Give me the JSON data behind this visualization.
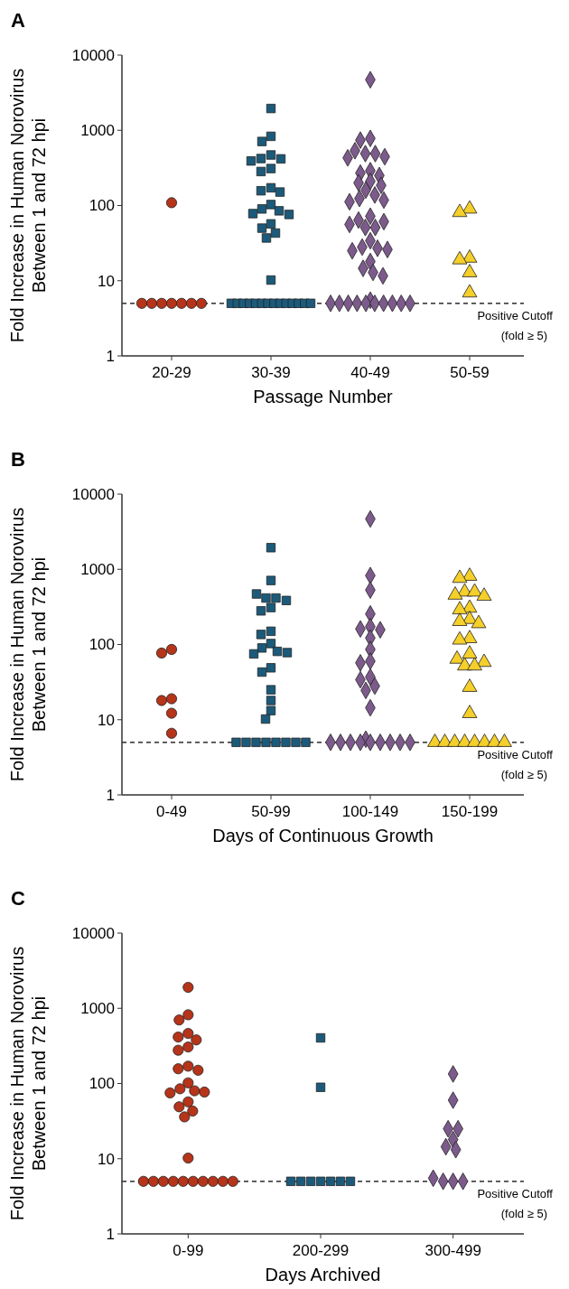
{
  "chart_data": [
    {
      "type": "scatter",
      "title": "A",
      "xlabel": "Passage Number",
      "ylabel": "Fold Increase in Human Norovirus\nBetween 1 and 72 hpi",
      "categories": [
        "20-29",
        "30-39",
        "40-49",
        "50-59"
      ],
      "ylim": [
        1,
        10000
      ],
      "yticks": [
        1,
        10,
        100,
        1000,
        10000
      ],
      "log": "y",
      "ref_lines": [
        {
          "axis": "y",
          "value": 5,
          "label": "Positive Cutoff\n(fold ≥ 5)",
          "line_style": "dashed",
          "color": "#000000"
        }
      ],
      "series": [
        {
          "color": "#b5341a",
          "marker": "circle",
          "x": [
            "20-29",
            "20-29",
            "20-29",
            "20-29",
            "20-29",
            "20-29",
            "20-29",
            "20-29"
          ],
          "values": [
            109,
            5,
            5,
            5,
            5,
            5,
            5,
            5
          ]
        },
        {
          "color": "#1b5a7a",
          "marker": "square",
          "x": [
            "30-39",
            "30-39",
            "30-39",
            "30-39",
            "30-39",
            "30-39",
            "30-39",
            "30-39",
            "30-39",
            "30-39",
            "30-39",
            "30-39",
            "30-39",
            "30-39",
            "30-39",
            "30-39",
            "30-39",
            "30-39",
            "30-39",
            "30-39",
            "30-39",
            "30-39",
            "30-39",
            "30-39",
            "30-39",
            "30-39",
            "30-39",
            "30-39",
            "30-39",
            "30-39",
            "30-39",
            "30-39",
            "30-39",
            "30-39",
            "30-39",
            "30-39"
          ],
          "values": [
            1950,
            832,
            710,
            470,
            421,
            417,
            391,
            310,
            283,
            172,
            157,
            151,
            103,
            90,
            85,
            78,
            76,
            57,
            50,
            43,
            37,
            10.2,
            5,
            5,
            5,
            5,
            5,
            5,
            5,
            5,
            5,
            5,
            5,
            5,
            5,
            5
          ]
        },
        {
          "color": "#7d5a8c",
          "marker": "diamond",
          "x": [
            "40-49",
            "40-49",
            "40-49",
            "40-49",
            "40-49",
            "40-49",
            "40-49",
            "40-49",
            "40-49",
            "40-49",
            "40-49",
            "40-49",
            "40-49",
            "40-49",
            "40-49",
            "40-49",
            "40-49",
            "40-49",
            "40-49",
            "40-49",
            "40-49",
            "40-49",
            "40-49",
            "40-49",
            "40-49",
            "40-49",
            "40-49",
            "40-49",
            "40-49",
            "40-49",
            "40-49",
            "40-49",
            "40-49",
            "40-49",
            "40-49",
            "40-49",
            "40-49",
            "40-49",
            "40-49",
            "40-49",
            "40-49",
            "40-49",
            "40-49",
            "40-49",
            "40-49"
          ],
          "values": [
            4700,
            780,
            740,
            535,
            490,
            490,
            445,
            430,
            290,
            270,
            250,
            210,
            200,
            185,
            160,
            138,
            124,
            118,
            112,
            72,
            64,
            61,
            56,
            51,
            51,
            34,
            28,
            27,
            26,
            25,
            18,
            14.6,
            12.9,
            11.6,
            5.5,
            5,
            5,
            5,
            5,
            5,
            5,
            5,
            5,
            5,
            5
          ]
        },
        {
          "color": "#f5cf2a",
          "marker": "triangle",
          "x": [
            "50-59",
            "50-59",
            "50-59",
            "50-59",
            "50-59",
            "50-59"
          ],
          "values": [
            90,
            81,
            20,
            19,
            12.8,
            6.9
          ]
        }
      ]
    },
    {
      "type": "scatter",
      "title": "B",
      "xlabel": "Days of Continuous Growth",
      "ylabel": "Fold Increase in Human Norovirus\nBetween 1 and 72 hpi",
      "categories": [
        "0-49",
        "50-99",
        "100-149",
        "150-199"
      ],
      "ylim": [
        1,
        10000
      ],
      "yticks": [
        1,
        10,
        100,
        1000,
        10000
      ],
      "log": "y",
      "ref_lines": [
        {
          "axis": "y",
          "value": 5,
          "label": "Positive Cutoff\n(fold ≥ 5)",
          "line_style": "dashed",
          "color": "#000000"
        }
      ],
      "series": [
        {
          "color": "#b5341a",
          "marker": "circle",
          "x": [
            "0-49",
            "0-49",
            "0-49",
            "0-49",
            "0-49",
            "0-49"
          ],
          "values": [
            86,
            77,
            19,
            18,
            12.2,
            6.6
          ]
        },
        {
          "color": "#1b5a7a",
          "marker": "square",
          "x": [
            "50-99",
            "50-99",
            "50-99",
            "50-99",
            "50-99",
            "50-99",
            "50-99",
            "50-99",
            "50-99",
            "50-99",
            "50-99",
            "50-99",
            "50-99",
            "50-99",
            "50-99",
            "50-99",
            "50-99",
            "50-99",
            "50-99",
            "50-99",
            "50-99",
            "50-99",
            "50-99",
            "50-99",
            "50-99",
            "50-99",
            "50-99",
            "50-99",
            "50-99"
          ],
          "values": [
            1940,
            710,
            470,
            415,
            415,
            385,
            310,
            280,
            150,
            136,
            103,
            90,
            81,
            78,
            75,
            49,
            43,
            25,
            18,
            13.2,
            10.2,
            5,
            5,
            5,
            5,
            5,
            5,
            5,
            5
          ]
        },
        {
          "color": "#7d5a8c",
          "marker": "diamond",
          "x": [
            "100-149",
            "100-149",
            "100-149",
            "100-149",
            "100-149",
            "100-149",
            "100-149",
            "100-149",
            "100-149",
            "100-149",
            "100-149",
            "100-149",
            "100-149",
            "100-149",
            "100-149",
            "100-149",
            "100-149",
            "100-149",
            "100-149",
            "100-149",
            "100-149",
            "100-149",
            "100-149",
            "100-149",
            "100-149",
            "100-149"
          ],
          "values": [
            4670,
            825,
            530,
            255,
            173,
            161,
            157,
            122,
            86,
            60,
            57,
            37,
            34,
            28,
            24.5,
            14.4,
            5.5,
            5,
            5,
            5,
            5,
            5,
            5,
            5,
            5,
            5
          ]
        },
        {
          "color": "#f5cf2a",
          "marker": "triangle",
          "x": [
            "150-199",
            "150-199",
            "150-199",
            "150-199",
            "150-199",
            "150-199",
            "150-199",
            "150-199",
            "150-199",
            "150-199",
            "150-199",
            "150-199",
            "150-199",
            "150-199",
            "150-199",
            "150-199",
            "150-199",
            "150-199",
            "150-199",
            "150-199",
            "150-199",
            "150-199",
            "150-199",
            "150-199",
            "150-199",
            "150-199",
            "150-199",
            "150-199"
          ],
          "values": [
            810,
            760,
            500,
            500,
            455,
            440,
            305,
            290,
            216,
            203,
            190,
            120,
            115,
            75,
            64,
            58,
            52,
            52,
            27,
            12.1,
            5,
            5,
            5,
            5,
            5,
            5,
            5,
            5
          ]
        }
      ]
    },
    {
      "type": "scatter",
      "title": "C",
      "xlabel": "Days Archived",
      "ylabel": "Fold Increase in Human Norovirus\nBetween 1 and 72 hpi",
      "categories": [
        "0-99",
        "200-299",
        "300-499"
      ],
      "ylim": [
        1,
        10000
      ],
      "yticks": [
        1,
        10,
        100,
        1000,
        10000
      ],
      "log": "y",
      "ref_lines": [
        {
          "axis": "y",
          "value": 5,
          "label": "Positive Cutoff\n(fold ≥ 5)",
          "line_style": "dashed",
          "color": "#000000"
        }
      ],
      "series": [
        {
          "color": "#b5341a",
          "marker": "circle",
          "x": [
            "0-99",
            "0-99",
            "0-99",
            "0-99",
            "0-99",
            "0-99",
            "0-99",
            "0-99",
            "0-99",
            "0-99",
            "0-99",
            "0-99",
            "0-99",
            "0-99",
            "0-99",
            "0-99",
            "0-99",
            "0-99",
            "0-99",
            "0-99",
            "0-99",
            "0-99",
            "0-99",
            "0-99",
            "0-99",
            "0-99",
            "0-99",
            "0-99",
            "0-99",
            "0-99",
            "0-99"
          ],
          "values": [
            1900,
            820,
            700,
            463,
            415,
            380,
            306,
            277,
            170,
            157,
            150,
            102,
            85,
            80,
            77,
            75,
            57,
            49,
            43,
            36,
            10.2,
            5,
            5,
            5,
            5,
            5,
            5,
            5,
            5,
            5,
            5
          ]
        },
        {
          "color": "#1b5a7a",
          "marker": "square",
          "x": [
            "200-299",
            "200-299",
            "200-299",
            "200-299",
            "200-299",
            "200-299",
            "200-299",
            "200-299",
            "200-299"
          ],
          "values": [
            404,
            89,
            5,
            5,
            5,
            5,
            5,
            5,
            5
          ]
        },
        {
          "color": "#7d5a8c",
          "marker": "diamond",
          "x": [
            "300-499",
            "300-499",
            "300-499",
            "300-499",
            "300-499",
            "300-499",
            "300-499",
            "300-499",
            "300-499",
            "300-499",
            "300-499"
          ],
          "values": [
            134,
            60,
            25,
            25,
            18,
            14.4,
            13.2,
            5.5,
            5,
            5,
            5
          ]
        }
      ]
    }
  ]
}
